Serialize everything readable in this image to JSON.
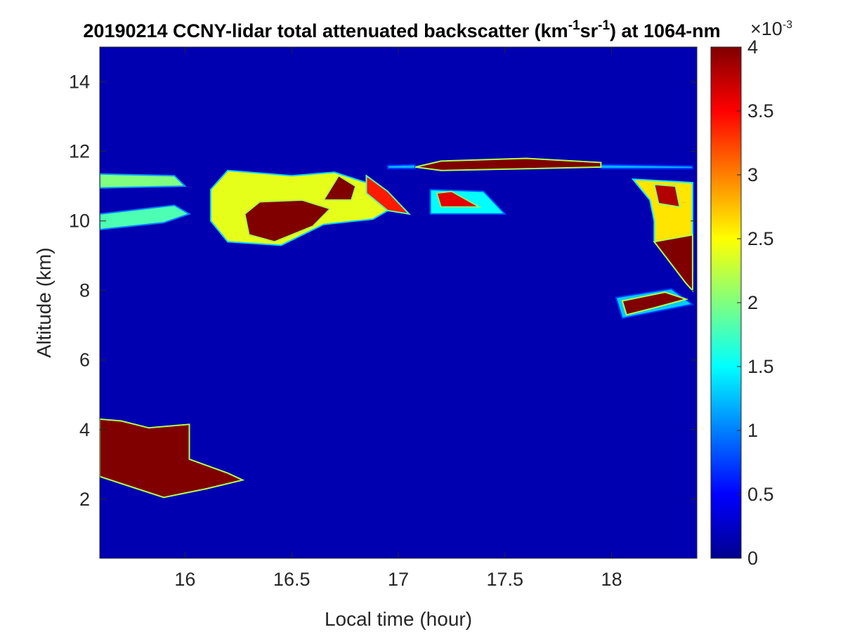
{
  "chart_data": {
    "type": "heatmap",
    "title": {
      "prefix": "20190214 CCNY-lidar total attenuated backscatter (km",
      "sup1": "-1",
      "mid": "sr",
      "sup2": "-1",
      "suffix": ") at 1064-nm"
    },
    "xlabel": "Local time (hour)",
    "ylabel": "Altitude (km)",
    "xlim": [
      15.6,
      18.4
    ],
    "ylim": [
      0.3,
      15.0
    ],
    "x_ticks": [
      16,
      16.5,
      17,
      17.5,
      18
    ],
    "x_tick_labels": [
      "16",
      "16.5",
      "17",
      "17.5",
      "18"
    ],
    "y_ticks": [
      2,
      4,
      6,
      8,
      10,
      12,
      14
    ],
    "y_tick_labels": [
      "2",
      "4",
      "6",
      "8",
      "10",
      "12",
      "14"
    ],
    "colorbar": {
      "range": [
        0,
        4
      ],
      "ticks": [
        0,
        0.5,
        1,
        1.5,
        2,
        2.5,
        3,
        3.5,
        4
      ],
      "tick_labels": [
        "0",
        "0.5",
        "1",
        "1.5",
        "2",
        "2.5",
        "3",
        "3.5",
        "4"
      ],
      "exponent": {
        "base": "×10",
        "power": "-3"
      },
      "colormap": "jet"
    },
    "background_value": 0.15,
    "features": [
      {
        "name": "low cloud",
        "value": 4.0,
        "outline": [
          [
            15.6,
            4.3
          ],
          [
            15.7,
            4.25
          ],
          [
            15.83,
            4.05
          ],
          [
            16.02,
            4.15
          ],
          [
            16.02,
            3.15
          ],
          [
            16.2,
            2.75
          ],
          [
            16.27,
            2.55
          ],
          [
            16.1,
            2.3
          ],
          [
            15.9,
            2.05
          ],
          [
            15.75,
            2.35
          ],
          [
            15.6,
            2.65
          ]
        ]
      },
      {
        "name": "cirrus core",
        "value": 4.0,
        "outline": [
          [
            16.28,
            10.2
          ],
          [
            16.35,
            10.55
          ],
          [
            16.55,
            10.6
          ],
          [
            16.68,
            10.35
          ],
          [
            16.6,
            9.85
          ],
          [
            16.42,
            9.4
          ],
          [
            16.3,
            9.6
          ]
        ]
      },
      {
        "name": "cirrus halo",
        "value": 2.4,
        "outline": [
          [
            16.12,
            10.9
          ],
          [
            16.2,
            11.45
          ],
          [
            16.5,
            11.3
          ],
          [
            16.7,
            11.4
          ],
          [
            16.85,
            11.1
          ],
          [
            16.98,
            10.4
          ],
          [
            16.88,
            10.05
          ],
          [
            16.65,
            9.9
          ],
          [
            16.45,
            9.3
          ],
          [
            16.2,
            9.4
          ],
          [
            16.12,
            10.0
          ]
        ]
      },
      {
        "name": "cirrus patch",
        "value": 4.0,
        "outline": [
          [
            16.65,
            10.6
          ],
          [
            16.72,
            11.3
          ],
          [
            16.8,
            11.0
          ],
          [
            16.78,
            10.6
          ]
        ]
      },
      {
        "name": "cirrus patch",
        "value": 3.4,
        "outline": [
          [
            16.85,
            11.3
          ],
          [
            16.95,
            10.85
          ],
          [
            17.05,
            10.2
          ],
          [
            16.95,
            10.3
          ],
          [
            16.85,
            10.8
          ]
        ]
      },
      {
        "name": "upper cirrus band",
        "value": 4.0,
        "outline": [
          [
            17.08,
            11.55
          ],
          [
            17.2,
            11.72
          ],
          [
            17.6,
            11.8
          ],
          [
            17.95,
            11.68
          ],
          [
            17.95,
            11.55
          ],
          [
            17.6,
            11.5
          ],
          [
            17.2,
            11.45
          ]
        ]
      },
      {
        "name": "upper cirrus band",
        "value": 1.2,
        "outline": [
          [
            16.95,
            11.6
          ],
          [
            17.08,
            11.62
          ],
          [
            17.08,
            11.5
          ],
          [
            16.95,
            11.5
          ]
        ]
      },
      {
        "name": "upper cirrus band",
        "value": 1.2,
        "outline": [
          [
            17.95,
            11.62
          ],
          [
            18.38,
            11.58
          ],
          [
            18.38,
            11.5
          ],
          [
            17.95,
            11.5
          ]
        ]
      },
      {
        "name": "thin cirrus left",
        "value": 2.0,
        "outline": [
          [
            15.6,
            11.35
          ],
          [
            15.95,
            11.3
          ],
          [
            16.0,
            11.0
          ],
          [
            15.6,
            10.95
          ]
        ]
      },
      {
        "name": "thin cirrus left",
        "value": 1.8,
        "outline": [
          [
            15.6,
            10.2
          ],
          [
            15.95,
            10.45
          ],
          [
            16.02,
            10.2
          ],
          [
            15.9,
            9.95
          ],
          [
            15.6,
            9.75
          ]
        ]
      },
      {
        "name": "mid cirrus",
        "value": 3.6,
        "outline": [
          [
            17.18,
            10.8
          ],
          [
            17.25,
            10.85
          ],
          [
            17.38,
            10.4
          ],
          [
            17.2,
            10.4
          ]
        ]
      },
      {
        "name": "mid cirrus halo",
        "value": 1.5,
        "outline": [
          [
            17.15,
            10.9
          ],
          [
            17.4,
            10.85
          ],
          [
            17.5,
            10.2
          ],
          [
            17.15,
            10.2
          ]
        ]
      },
      {
        "name": "right cirrus",
        "value": 2.6,
        "outline": [
          [
            18.1,
            11.2
          ],
          [
            18.38,
            11.1
          ],
          [
            18.38,
            8.6
          ],
          [
            18.32,
            9.0
          ],
          [
            18.2,
            9.4
          ],
          [
            18.2,
            10.0
          ],
          [
            18.18,
            10.6
          ]
        ]
      },
      {
        "name": "right cirrus",
        "value": 4.0,
        "outline": [
          [
            18.38,
            9.6
          ],
          [
            18.38,
            8.0
          ],
          [
            18.35,
            8.2
          ],
          [
            18.2,
            9.4
          ]
        ]
      },
      {
        "name": "right cirrus",
        "value": 3.8,
        "outline": [
          [
            18.2,
            11.05
          ],
          [
            18.3,
            11.0
          ],
          [
            18.32,
            10.4
          ],
          [
            18.22,
            10.5
          ]
        ]
      },
      {
        "name": "lower right cirrus",
        "value": 4.0,
        "outline": [
          [
            18.05,
            7.7
          ],
          [
            18.25,
            7.95
          ],
          [
            18.35,
            7.75
          ],
          [
            18.2,
            7.5
          ],
          [
            18.07,
            7.3
          ]
        ]
      },
      {
        "name": "lower right halo",
        "value": 1.3,
        "outline": [
          [
            18.02,
            7.8
          ],
          [
            18.28,
            8.05
          ],
          [
            18.38,
            7.6
          ],
          [
            18.05,
            7.2
          ]
        ]
      }
    ]
  }
}
